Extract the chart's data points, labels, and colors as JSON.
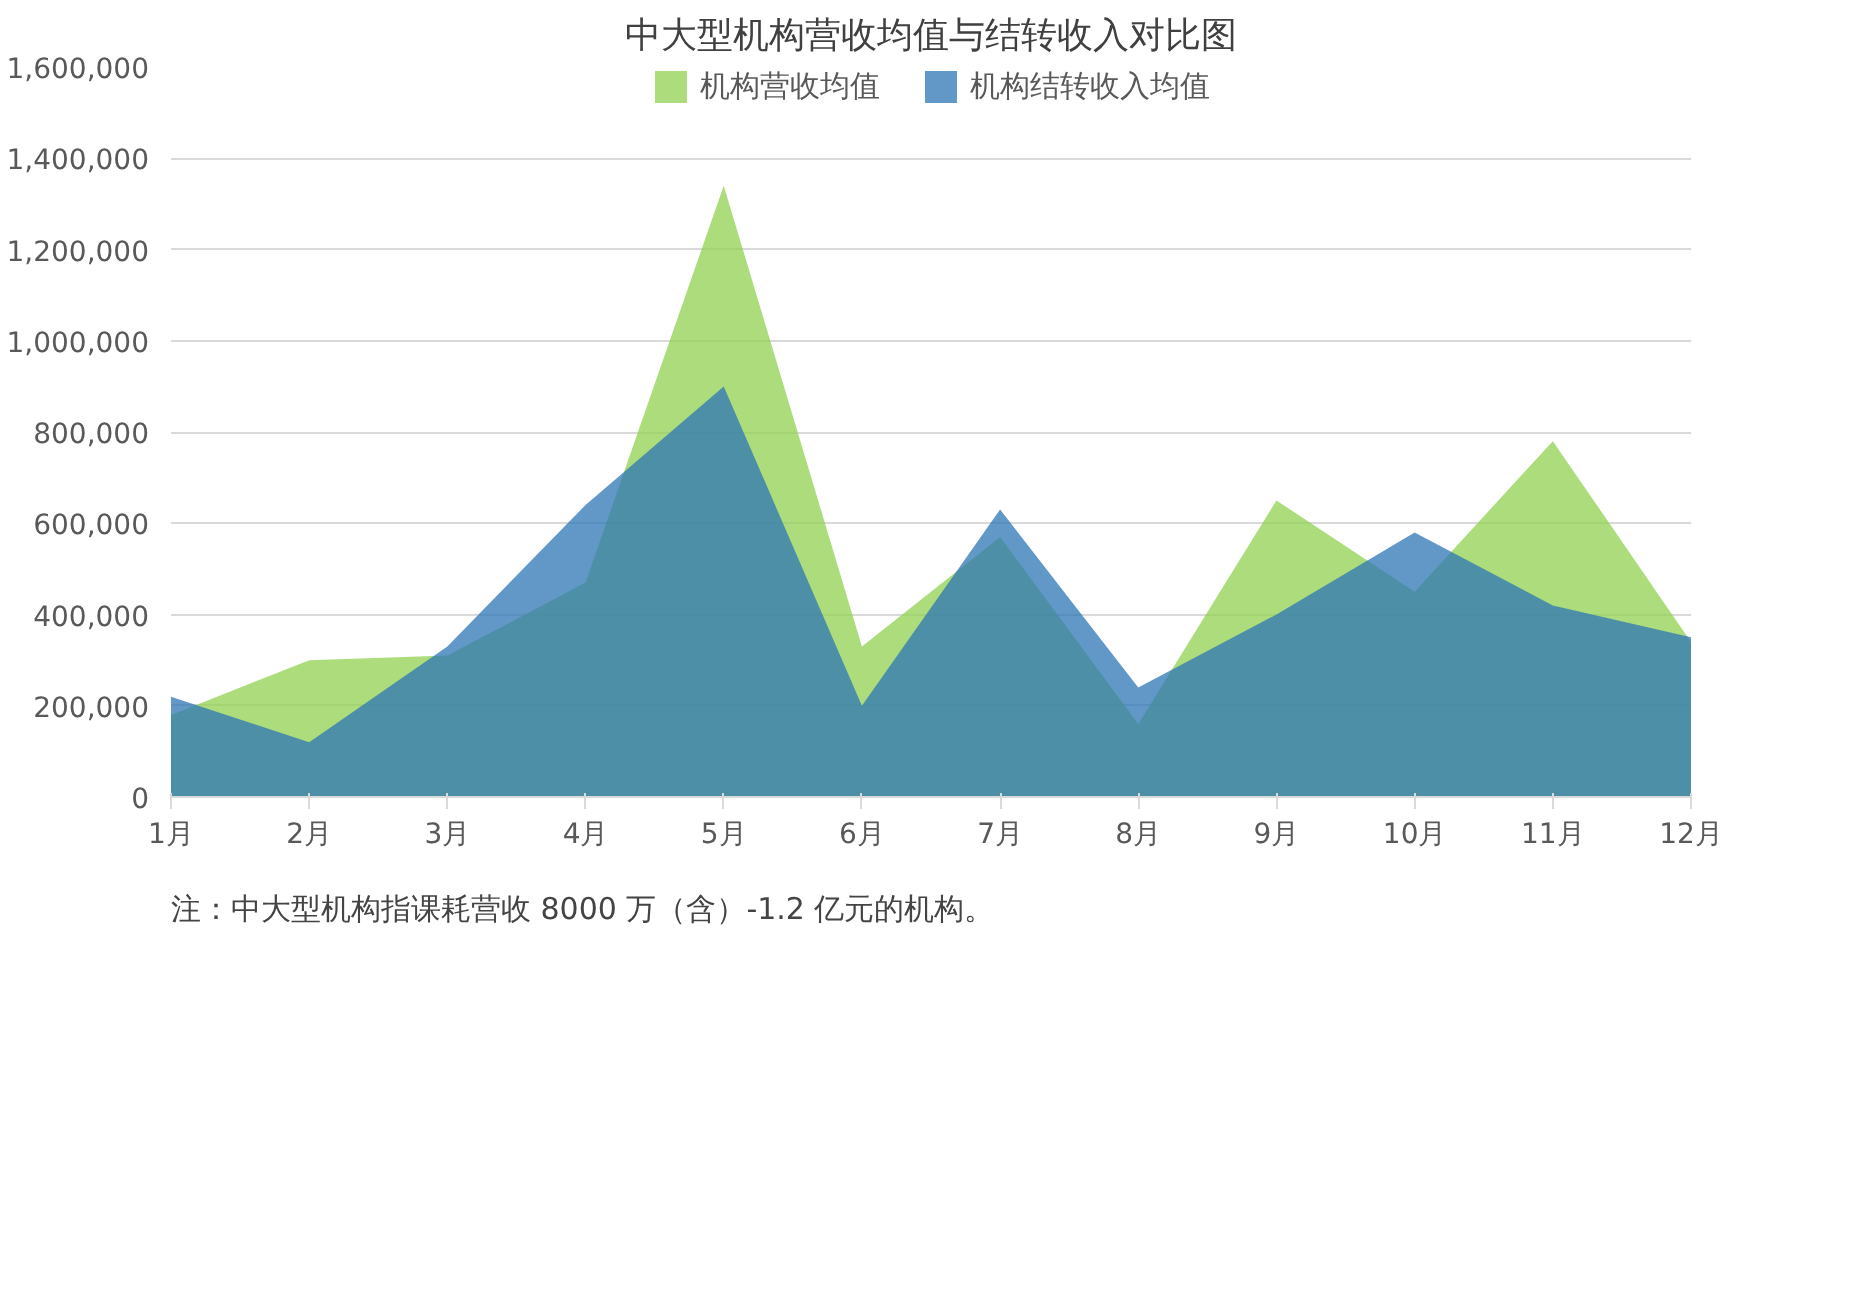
{
  "chart_data": {
    "type": "area",
    "title": "中大型机构营收均值与结转收入对比图",
    "categories": [
      "1月",
      "2月",
      "3月",
      "4月",
      "5月",
      "6月",
      "7月",
      "8月",
      "9月",
      "10月",
      "11月",
      "12月"
    ],
    "series": [
      {
        "name": "机构营收均值",
        "color": "#92d050",
        "values": [
          180000,
          300000,
          310000,
          470000,
          1340000,
          330000,
          570000,
          160000,
          650000,
          450000,
          780000,
          340000
        ]
      },
      {
        "name": "机构结转收入均值",
        "color": "#2e75b6",
        "values": [
          220000,
          120000,
          330000,
          640000,
          900000,
          200000,
          630000,
          240000,
          400000,
          580000,
          420000,
          350000
        ]
      }
    ],
    "ylim": [
      0,
      1600000
    ],
    "yticks": [
      {
        "value": 0,
        "label": "0"
      },
      {
        "value": 200000,
        "label": "200,000"
      },
      {
        "value": 400000,
        "label": "400,000"
      },
      {
        "value": 600000,
        "label": "600,000"
      },
      {
        "value": 800000,
        "label": "800,000"
      },
      {
        "value": 1000000,
        "label": "1,000,000"
      },
      {
        "value": 1200000,
        "label": "1,200,000"
      },
      {
        "value": 1400000,
        "label": "1,400,000"
      },
      {
        "value": 1600000,
        "label": "1,600,000"
      }
    ],
    "grid": "y",
    "legend": "top",
    "annotations": [
      "注：中大型机构指课耗营收 8000 万（含）-1.2 亿元的机构。"
    ]
  }
}
